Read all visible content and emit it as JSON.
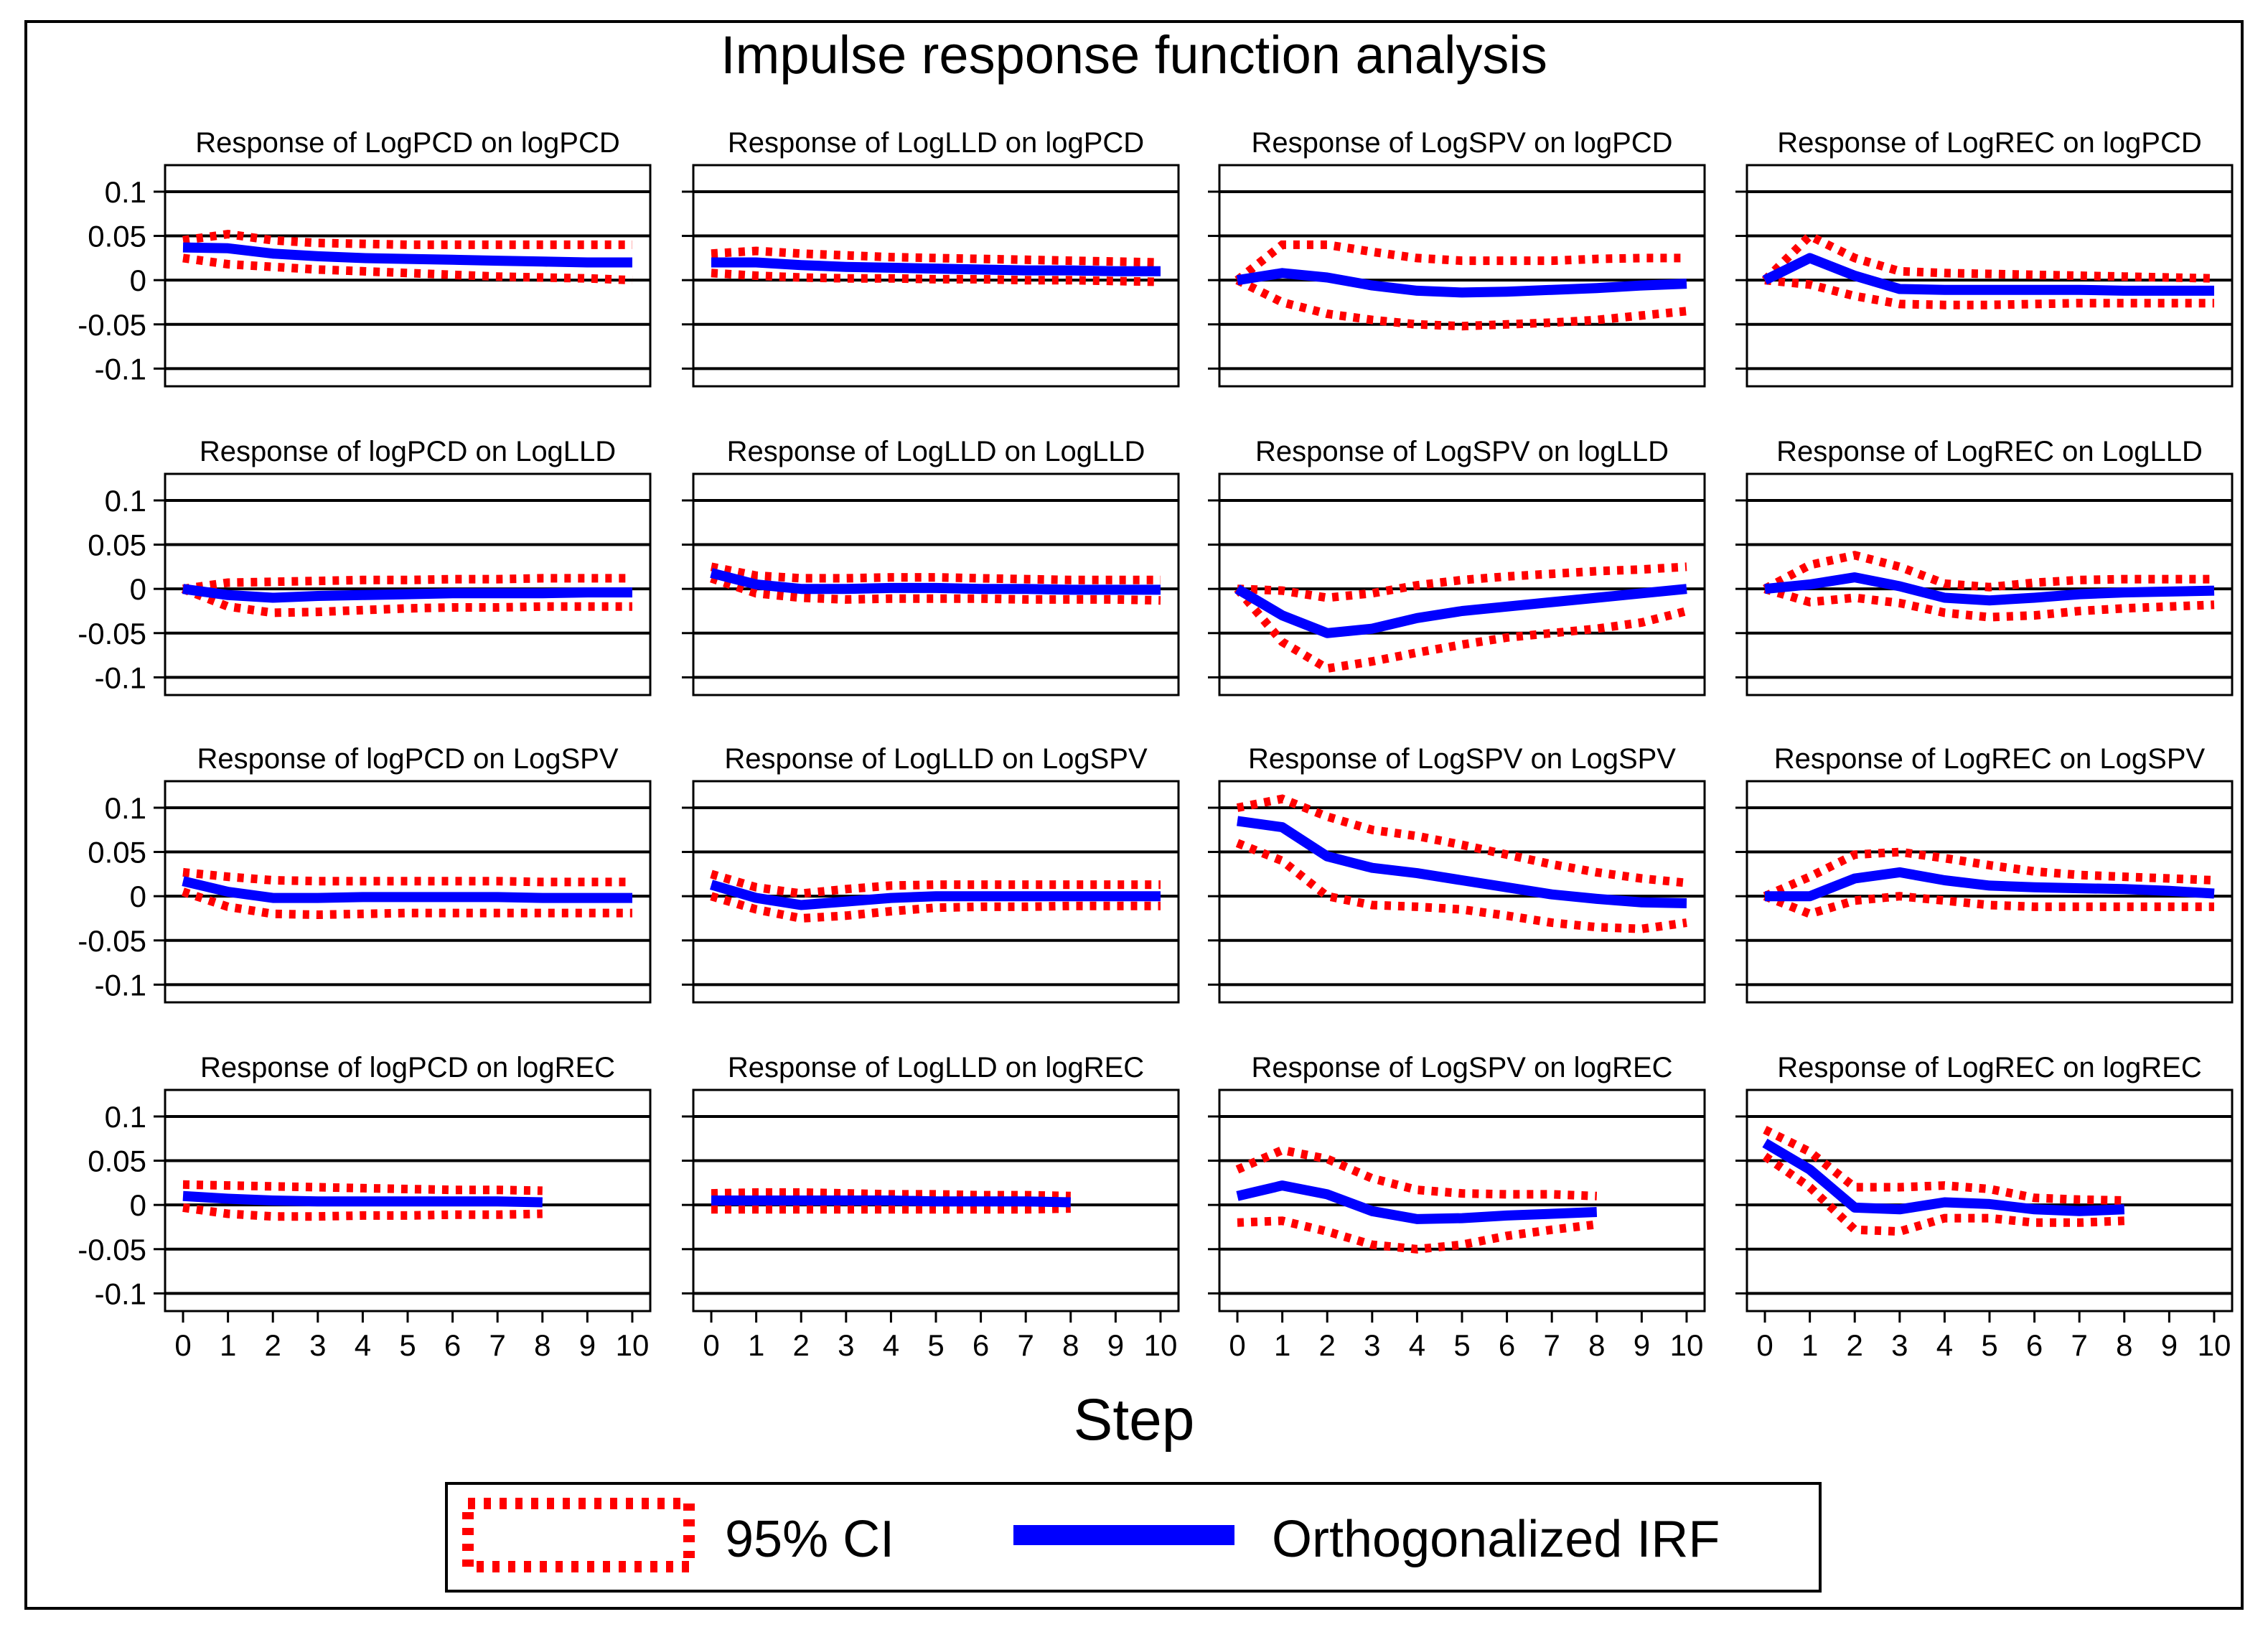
{
  "figure": {
    "title": "Impulse response function analysis",
    "xlabel": "Step"
  },
  "legend": {
    "ci_label": "95% CI",
    "irf_label": "Orthogonalized IRF"
  },
  "colors": {
    "irf": "#0000ff",
    "ci": "#ff0000",
    "axis": "#000000"
  },
  "chart_data": [
    {
      "type": "line",
      "title": "Response of LogPCD on logPCD",
      "x": [
        0,
        1,
        2,
        3,
        4,
        5,
        6,
        7,
        8,
        9,
        10
      ],
      "irf": [
        0.037,
        0.036,
        0.03,
        0.027,
        0.025,
        0.024,
        0.023,
        0.022,
        0.021,
        0.02,
        0.02
      ],
      "lower": [
        0.025,
        0.018,
        0.015,
        0.012,
        0.01,
        0.008,
        0.006,
        0.004,
        0.003,
        0.002,
        0.0
      ],
      "upper": [
        0.045,
        0.052,
        0.045,
        0.042,
        0.041,
        0.04,
        0.04,
        0.04,
        0.04,
        0.04,
        0.04
      ],
      "ylim": [
        -0.12,
        0.13
      ],
      "yticks": [
        0.1,
        0.05,
        0,
        -0.05,
        -0.1
      ],
      "ytick_labels": [
        "0.1",
        "0.05",
        "0",
        "-0.05",
        "-0.1"
      ]
    },
    {
      "type": "line",
      "title": "Response of LogLLD on logPCD",
      "x": [
        0,
        1,
        2,
        3,
        4,
        5,
        6,
        7,
        8,
        9,
        10
      ],
      "irf": [
        0.02,
        0.02,
        0.017,
        0.015,
        0.014,
        0.013,
        0.012,
        0.011,
        0.011,
        0.01,
        0.01
      ],
      "lower": [
        0.008,
        0.005,
        0.003,
        0.002,
        0.002,
        0.001,
        0.001,
        0.0,
        0.0,
        -0.001,
        -0.002
      ],
      "upper": [
        0.03,
        0.033,
        0.03,
        0.028,
        0.026,
        0.025,
        0.024,
        0.023,
        0.022,
        0.021,
        0.02
      ],
      "ylim": [
        -0.12,
        0.13
      ],
      "yticks": [
        0.1,
        0.05,
        0,
        -0.05,
        -0.1
      ],
      "ytick_labels": [
        "0.1",
        "0.05",
        "0",
        "-0.05",
        "-0.1"
      ]
    },
    {
      "type": "line",
      "title": "Response of LogSPV on logPCD",
      "x": [
        0,
        1,
        2,
        3,
        4,
        5,
        6,
        7,
        8,
        9,
        10
      ],
      "irf": [
        0.0,
        0.008,
        0.003,
        -0.006,
        -0.012,
        -0.014,
        -0.013,
        -0.011,
        -0.009,
        -0.006,
        -0.004
      ],
      "lower": [
        0.0,
        -0.025,
        -0.038,
        -0.045,
        -0.05,
        -0.052,
        -0.05,
        -0.048,
        -0.045,
        -0.04,
        -0.035
      ],
      "upper": [
        0.0,
        0.04,
        0.04,
        0.032,
        0.025,
        0.022,
        0.022,
        0.022,
        0.024,
        0.025,
        0.025
      ],
      "ylim": [
        -0.12,
        0.13
      ],
      "yticks": [
        0.1,
        0.05,
        0,
        -0.05,
        -0.1
      ],
      "ytick_labels": [
        "0.1",
        "0.05",
        "0",
        "-0.05",
        "-0.1"
      ]
    },
    {
      "type": "line",
      "title": "Response of LogREC on logPCD",
      "x": [
        0,
        1,
        2,
        3,
        4,
        5,
        6,
        7,
        8,
        9,
        10
      ],
      "irf": [
        0.0,
        0.025,
        0.005,
        -0.01,
        -0.011,
        -0.011,
        -0.011,
        -0.011,
        -0.012,
        -0.012,
        -0.012
      ],
      "lower": [
        0.0,
        -0.005,
        -0.018,
        -0.027,
        -0.028,
        -0.028,
        -0.027,
        -0.026,
        -0.026,
        -0.026,
        -0.026
      ],
      "upper": [
        0.0,
        0.05,
        0.025,
        0.01,
        0.008,
        0.007,
        0.006,
        0.005,
        0.004,
        0.003,
        0.002
      ],
      "ylim": [
        -0.12,
        0.13
      ],
      "yticks": [
        0.1,
        0.05,
        0,
        -0.05,
        -0.1
      ],
      "ytick_labels": [
        "0.1",
        "0.05",
        "0",
        "-0.05",
        "-0.1"
      ]
    },
    {
      "type": "line",
      "title": "Response of logPCD on LogLLD",
      "x": [
        0,
        1,
        2,
        3,
        4,
        5,
        6,
        7,
        8,
        9,
        10
      ],
      "irf": [
        0.0,
        -0.007,
        -0.01,
        -0.008,
        -0.007,
        -0.006,
        -0.005,
        -0.005,
        -0.005,
        -0.004,
        -0.004
      ],
      "lower": [
        0.0,
        -0.02,
        -0.027,
        -0.026,
        -0.024,
        -0.022,
        -0.021,
        -0.021,
        -0.02,
        -0.02,
        -0.02
      ],
      "upper": [
        0.0,
        0.007,
        0.008,
        0.009,
        0.01,
        0.01,
        0.011,
        0.011,
        0.012,
        0.012,
        0.012
      ],
      "ylim": [
        -0.12,
        0.13
      ],
      "yticks": [
        0.1,
        0.05,
        0,
        -0.05,
        -0.1
      ],
      "ytick_labels": [
        "0.1",
        "0.05",
        "0",
        "-0.05",
        "-0.1"
      ]
    },
    {
      "type": "line",
      "title": "Response of LogLLD on LogLLD",
      "x": [
        0,
        1,
        2,
        3,
        4,
        5,
        6,
        7,
        8,
        9,
        10
      ],
      "irf": [
        0.018,
        0.005,
        0.0,
        0.0,
        0.001,
        0.001,
        0.0,
        0.0,
        -0.001,
        -0.001,
        -0.001
      ],
      "lower": [
        0.012,
        -0.005,
        -0.01,
        -0.012,
        -0.011,
        -0.011,
        -0.011,
        -0.012,
        -0.012,
        -0.012,
        -0.013
      ],
      "upper": [
        0.025,
        0.015,
        0.012,
        0.012,
        0.013,
        0.013,
        0.012,
        0.011,
        0.01,
        0.01,
        0.01
      ],
      "ylim": [
        -0.12,
        0.13
      ],
      "yticks": [
        0.1,
        0.05,
        0,
        -0.05,
        -0.1
      ],
      "ytick_labels": [
        "0.1",
        "0.05",
        "0",
        "-0.05",
        "-0.1"
      ]
    },
    {
      "type": "line",
      "title": "Response of LogSPV on logLLD",
      "x": [
        0,
        1,
        2,
        3,
        4,
        5,
        6,
        7,
        8,
        9,
        10
      ],
      "irf": [
        0.0,
        -0.03,
        -0.05,
        -0.045,
        -0.033,
        -0.025,
        -0.02,
        -0.015,
        -0.01,
        -0.005,
        0.0
      ],
      "lower": [
        0.0,
        -0.06,
        -0.09,
        -0.082,
        -0.072,
        -0.063,
        -0.055,
        -0.05,
        -0.045,
        -0.038,
        -0.025
      ],
      "upper": [
        0.0,
        -0.002,
        -0.01,
        -0.005,
        0.004,
        0.01,
        0.014,
        0.017,
        0.02,
        0.022,
        0.025
      ],
      "ylim": [
        -0.12,
        0.13
      ],
      "yticks": [
        0.1,
        0.05,
        0,
        -0.05,
        -0.1
      ],
      "ytick_labels": [
        "0.1",
        "0.05",
        "0",
        "-0.05",
        "-0.1"
      ]
    },
    {
      "type": "line",
      "title": "Response of LogREC on LogLLD",
      "x": [
        0,
        1,
        2,
        3,
        4,
        5,
        6,
        7,
        8,
        9,
        10
      ],
      "irf": [
        0.0,
        0.005,
        0.013,
        0.003,
        -0.01,
        -0.013,
        -0.01,
        -0.006,
        -0.004,
        -0.003,
        -0.002
      ],
      "lower": [
        0.0,
        -0.015,
        -0.01,
        -0.016,
        -0.027,
        -0.032,
        -0.03,
        -0.025,
        -0.022,
        -0.02,
        -0.018
      ],
      "upper": [
        0.0,
        0.027,
        0.038,
        0.025,
        0.006,
        0.002,
        0.007,
        0.01,
        0.011,
        0.011,
        0.011
      ],
      "ylim": [
        -0.12,
        0.13
      ],
      "yticks": [
        0.1,
        0.05,
        0,
        -0.05,
        -0.1
      ],
      "ytick_labels": [
        "0.1",
        "0.05",
        "0",
        "-0.05",
        "-0.1"
      ]
    },
    {
      "type": "line",
      "title": "Response of logPCD on LogSPV",
      "x": [
        0,
        1,
        2,
        3,
        4,
        5,
        6,
        7,
        8,
        9,
        10
      ],
      "irf": [
        0.017,
        0.005,
        -0.002,
        -0.002,
        -0.001,
        -0.001,
        -0.001,
        -0.001,
        -0.002,
        -0.002,
        -0.002
      ],
      "lower": [
        0.005,
        -0.012,
        -0.02,
        -0.021,
        -0.02,
        -0.019,
        -0.019,
        -0.019,
        -0.019,
        -0.019,
        -0.019
      ],
      "upper": [
        0.027,
        0.022,
        0.018,
        0.017,
        0.017,
        0.017,
        0.017,
        0.017,
        0.016,
        0.016,
        0.016
      ],
      "ylim": [
        -0.12,
        0.13
      ],
      "yticks": [
        0.1,
        0.05,
        0,
        -0.05,
        -0.1
      ],
      "ytick_labels": [
        "0.1",
        "0.05",
        "0",
        "-0.05",
        "-0.1"
      ]
    },
    {
      "type": "line",
      "title": "Response of LogLLD on LogSPV",
      "x": [
        0,
        1,
        2,
        3,
        4,
        5,
        6,
        7,
        8,
        9,
        10
      ],
      "irf": [
        0.013,
        -0.002,
        -0.01,
        -0.006,
        -0.002,
        0.0,
        0.0,
        0.0,
        0.0,
        0.0,
        0.0
      ],
      "lower": [
        0.0,
        -0.015,
        -0.025,
        -0.022,
        -0.017,
        -0.013,
        -0.012,
        -0.012,
        -0.011,
        -0.011,
        -0.011
      ],
      "upper": [
        0.025,
        0.01,
        0.003,
        0.008,
        0.012,
        0.013,
        0.013,
        0.013,
        0.013,
        0.013,
        0.013
      ],
      "ylim": [
        -0.12,
        0.13
      ],
      "yticks": [
        0.1,
        0.05,
        0,
        -0.05,
        -0.1
      ],
      "ytick_labels": [
        "0.1",
        "0.05",
        "0",
        "-0.05",
        "-0.1"
      ]
    },
    {
      "type": "line",
      "title": "Response of LogSPV on LogSPV",
      "x": [
        0,
        1,
        2,
        3,
        4,
        5,
        6,
        7,
        8,
        9,
        10
      ],
      "irf": [
        0.085,
        0.078,
        0.045,
        0.032,
        0.026,
        0.018,
        0.01,
        0.002,
        -0.003,
        -0.007,
        -0.008
      ],
      "lower": [
        0.06,
        0.04,
        0.0,
        -0.01,
        -0.012,
        -0.015,
        -0.022,
        -0.03,
        -0.035,
        -0.037,
        -0.03
      ],
      "upper": [
        0.1,
        0.11,
        0.09,
        0.075,
        0.068,
        0.058,
        0.047,
        0.036,
        0.027,
        0.02,
        0.015
      ],
      "ylim": [
        -0.12,
        0.13
      ],
      "yticks": [
        0.1,
        0.05,
        0,
        -0.05,
        -0.1
      ],
      "ytick_labels": [
        "0.1",
        "0.05",
        "0",
        "-0.05",
        "-0.1"
      ]
    },
    {
      "type": "line",
      "title": "Response of LogREC on LogSPV",
      "x": [
        0,
        1,
        2,
        3,
        4,
        5,
        6,
        7,
        8,
        9,
        10
      ],
      "irf": [
        0.0,
        0.0,
        0.02,
        0.027,
        0.018,
        0.012,
        0.01,
        0.009,
        0.008,
        0.006,
        0.003
      ],
      "lower": [
        0.0,
        -0.02,
        -0.005,
        0.0,
        -0.005,
        -0.01,
        -0.012,
        -0.012,
        -0.012,
        -0.012,
        -0.012
      ],
      "upper": [
        0.0,
        0.022,
        0.047,
        0.05,
        0.043,
        0.035,
        0.028,
        0.024,
        0.022,
        0.02,
        0.018
      ],
      "ylim": [
        -0.12,
        0.13
      ],
      "yticks": [
        0.1,
        0.05,
        0,
        -0.05,
        -0.1
      ],
      "ytick_labels": [
        "0.1",
        "0.05",
        "0",
        "-0.05",
        "-0.1"
      ]
    },
    {
      "type": "line",
      "title": "Response of logPCD on logREC",
      "x": [
        0,
        1,
        2,
        3,
        4,
        5,
        6,
        7,
        8
      ],
      "irf": [
        0.01,
        0.007,
        0.005,
        0.004,
        0.004,
        0.004,
        0.004,
        0.004,
        0.003
      ],
      "lower": [
        -0.003,
        -0.01,
        -0.013,
        -0.013,
        -0.012,
        -0.012,
        -0.011,
        -0.011,
        -0.01
      ],
      "upper": [
        0.023,
        0.022,
        0.021,
        0.02,
        0.019,
        0.018,
        0.017,
        0.017,
        0.016
      ],
      "ylim": [
        -0.12,
        0.13
      ],
      "yticks": [
        0.1,
        0.05,
        0,
        -0.05,
        -0.1
      ],
      "ytick_labels": [
        "0.1",
        "0.05",
        "0",
        "-0.05",
        "-0.1"
      ]
    },
    {
      "type": "line",
      "title": "Response of LogLLD on logREC",
      "x": [
        0,
        1,
        2,
        3,
        4,
        5,
        6,
        7,
        8
      ],
      "irf": [
        0.005,
        0.005,
        0.005,
        0.005,
        0.005,
        0.004,
        0.004,
        0.004,
        0.003
      ],
      "lower": [
        -0.005,
        -0.005,
        -0.005,
        -0.005,
        -0.005,
        -0.005,
        -0.005,
        -0.005,
        -0.004
      ],
      "upper": [
        0.013,
        0.014,
        0.014,
        0.013,
        0.012,
        0.012,
        0.011,
        0.011,
        0.01
      ],
      "ylim": [
        -0.12,
        0.13
      ],
      "yticks": [
        0.1,
        0.05,
        0,
        -0.05,
        -0.1
      ],
      "ytick_labels": [
        "0.1",
        "0.05",
        "0",
        "-0.05",
        "-0.1"
      ]
    },
    {
      "type": "line",
      "title": "Response of LogSPV on logREC",
      "x": [
        0,
        1,
        2,
        3,
        4,
        5,
        6,
        7,
        8
      ],
      "irf": [
        0.01,
        0.022,
        0.012,
        -0.007,
        -0.016,
        -0.015,
        -0.012,
        -0.01,
        -0.008
      ],
      "lower": [
        -0.02,
        -0.018,
        -0.03,
        -0.045,
        -0.05,
        -0.045,
        -0.035,
        -0.028,
        -0.022
      ],
      "upper": [
        0.04,
        0.062,
        0.052,
        0.03,
        0.017,
        0.013,
        0.012,
        0.012,
        0.01
      ],
      "ylim": [
        -0.12,
        0.13
      ],
      "yticks": [
        0.1,
        0.05,
        0,
        -0.05,
        -0.1
      ],
      "ytick_labels": [
        "0.1",
        "0.05",
        "0",
        "-0.05",
        "-0.1"
      ]
    },
    {
      "type": "line",
      "title": "Response of LogREC on logREC",
      "x": [
        0,
        1,
        2,
        3,
        4,
        5,
        6,
        7,
        8
      ],
      "irf": [
        0.07,
        0.04,
        -0.003,
        -0.005,
        0.003,
        0.001,
        -0.005,
        -0.007,
        -0.005
      ],
      "lower": [
        0.055,
        0.02,
        -0.028,
        -0.03,
        -0.015,
        -0.015,
        -0.02,
        -0.02,
        -0.018
      ],
      "upper": [
        0.085,
        0.06,
        0.02,
        0.02,
        0.022,
        0.018,
        0.008,
        0.006,
        0.005
      ],
      "ylim": [
        -0.12,
        0.13
      ],
      "yticks": [
        0.1,
        0.05,
        0,
        -0.05,
        -0.1
      ],
      "ytick_labels": [
        "0.1",
        "0.05",
        "0",
        "-0.05",
        "-0.1"
      ]
    }
  ],
  "xticks": [
    0,
    1,
    2,
    3,
    4,
    5,
    6,
    7,
    8,
    9,
    10
  ],
  "xtick_labels": [
    "0",
    "1",
    "2",
    "3",
    "4",
    "5",
    "6",
    "7",
    "8",
    "9",
    "10"
  ]
}
